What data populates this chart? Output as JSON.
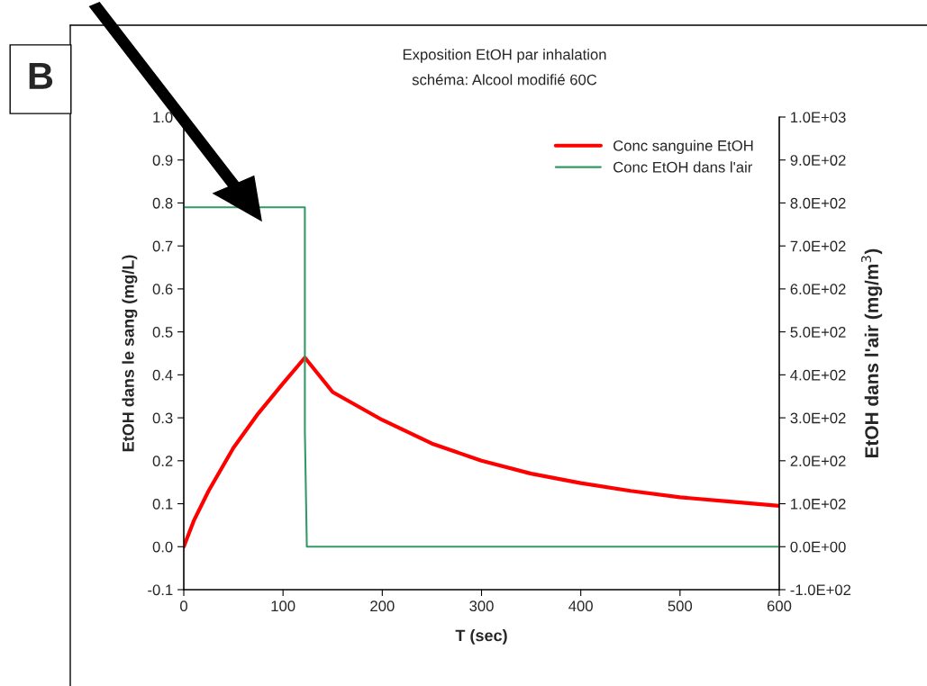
{
  "chart_data": {
    "type": "line",
    "title": "Exposition EtOH par inhalation",
    "subtitle": "schéma: Alcool modifié 60C",
    "xlabel": "T (sec)",
    "ylabel": "EtOH dans le sang (mg/L)",
    "y2label": "EtOH dans l'air (mg/m$^{3}$)",
    "series": [
      {
        "name": "Conc sanguine EtOH",
        "color": "#ff0000",
        "x": [
          0,
          10,
          25,
          50,
          75,
          100,
          122,
          150,
          200,
          250,
          300,
          350,
          400,
          450,
          500,
          550,
          600
        ],
        "values": [
          0,
          0.06,
          0.13,
          0.23,
          0.31,
          0.38,
          0.44,
          0.36,
          0.295,
          0.24,
          0.2,
          0.17,
          0.148,
          0.13,
          0.115,
          0.105,
          0.095
        ]
      },
      {
        "name": "Conc EtOH dans l'air",
        "color": "#339966",
        "axis": "y2",
        "x": [
          0,
          122,
          122,
          124,
          600
        ],
        "values": [
          790,
          790,
          270,
          0,
          0
        ]
      }
    ],
    "xlim": [
      0,
      600
    ],
    "xticks": [
      0,
      100,
      200,
      300,
      400,
      500,
      600
    ],
    "ylim": [
      -0.1,
      1.0
    ],
    "yticks": [
      -0.1,
      {
        "value": 0,
        "label": "0.0"
      },
      0.1,
      0.2,
      0.3,
      0.4,
      0.5,
      0.6,
      0.7,
      0.8,
      0.9,
      {
        "value": 1,
        "label": "1.0"
      }
    ],
    "y2lim": [
      -100,
      1000
    ],
    "y2ticks": [
      {
        "value": -100,
        "label": "-1.0E+02"
      },
      {
        "value": 0,
        "label": "0.0E+00"
      },
      {
        "value": 100,
        "label": "1.0E+02"
      },
      {
        "value": 200,
        "label": "2.0E+02"
      },
      {
        "value": 300,
        "label": "3.0E+02"
      },
      {
        "value": 400,
        "label": "4.0E+02"
      },
      {
        "value": 500,
        "label": "5.0E+02"
      },
      {
        "value": 600,
        "label": "6.0E+02"
      },
      {
        "value": 700,
        "label": "7.0E+02"
      },
      {
        "value": 800,
        "label": "8.0E+02"
      },
      {
        "value": 900,
        "label": "9.0E+02"
      },
      {
        "value": 1000,
        "label": "1.0E+03"
      }
    ],
    "legend": "top right",
    "grid": false,
    "annotations": [
      "B"
    ]
  }
}
